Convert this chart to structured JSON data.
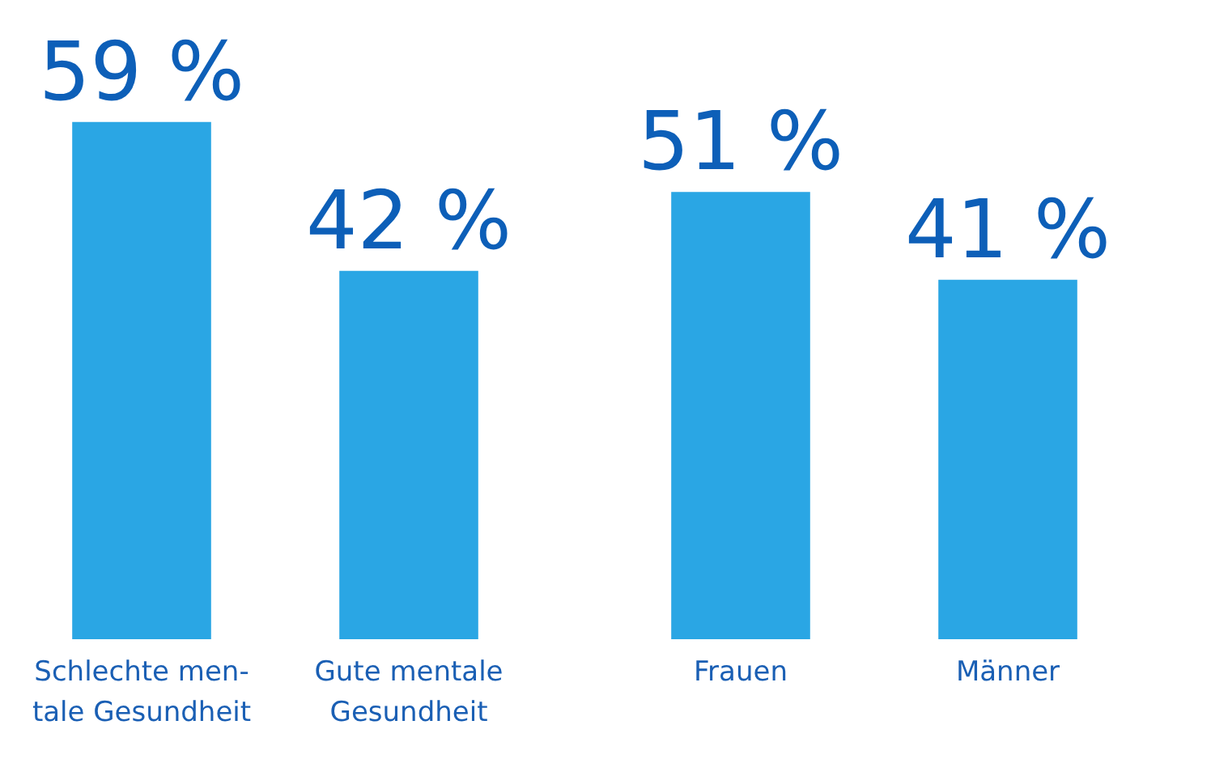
{
  "chart_data": [
    {
      "type": "bar",
      "categories": [
        "Schlechte men-\ntale Gesundheit",
        "Gute mentale\nGesundheit"
      ],
      "values": [
        59,
        42
      ],
      "value_labels": [
        "59 %",
        "42 %"
      ],
      "color": "#2aa6e4"
    },
    {
      "type": "bar",
      "categories": [
        "Frauen",
        "Männer"
      ],
      "values": [
        51,
        41
      ],
      "value_labels": [
        "51 %",
        "41 %"
      ],
      "color": "#2aa6e4"
    }
  ]
}
